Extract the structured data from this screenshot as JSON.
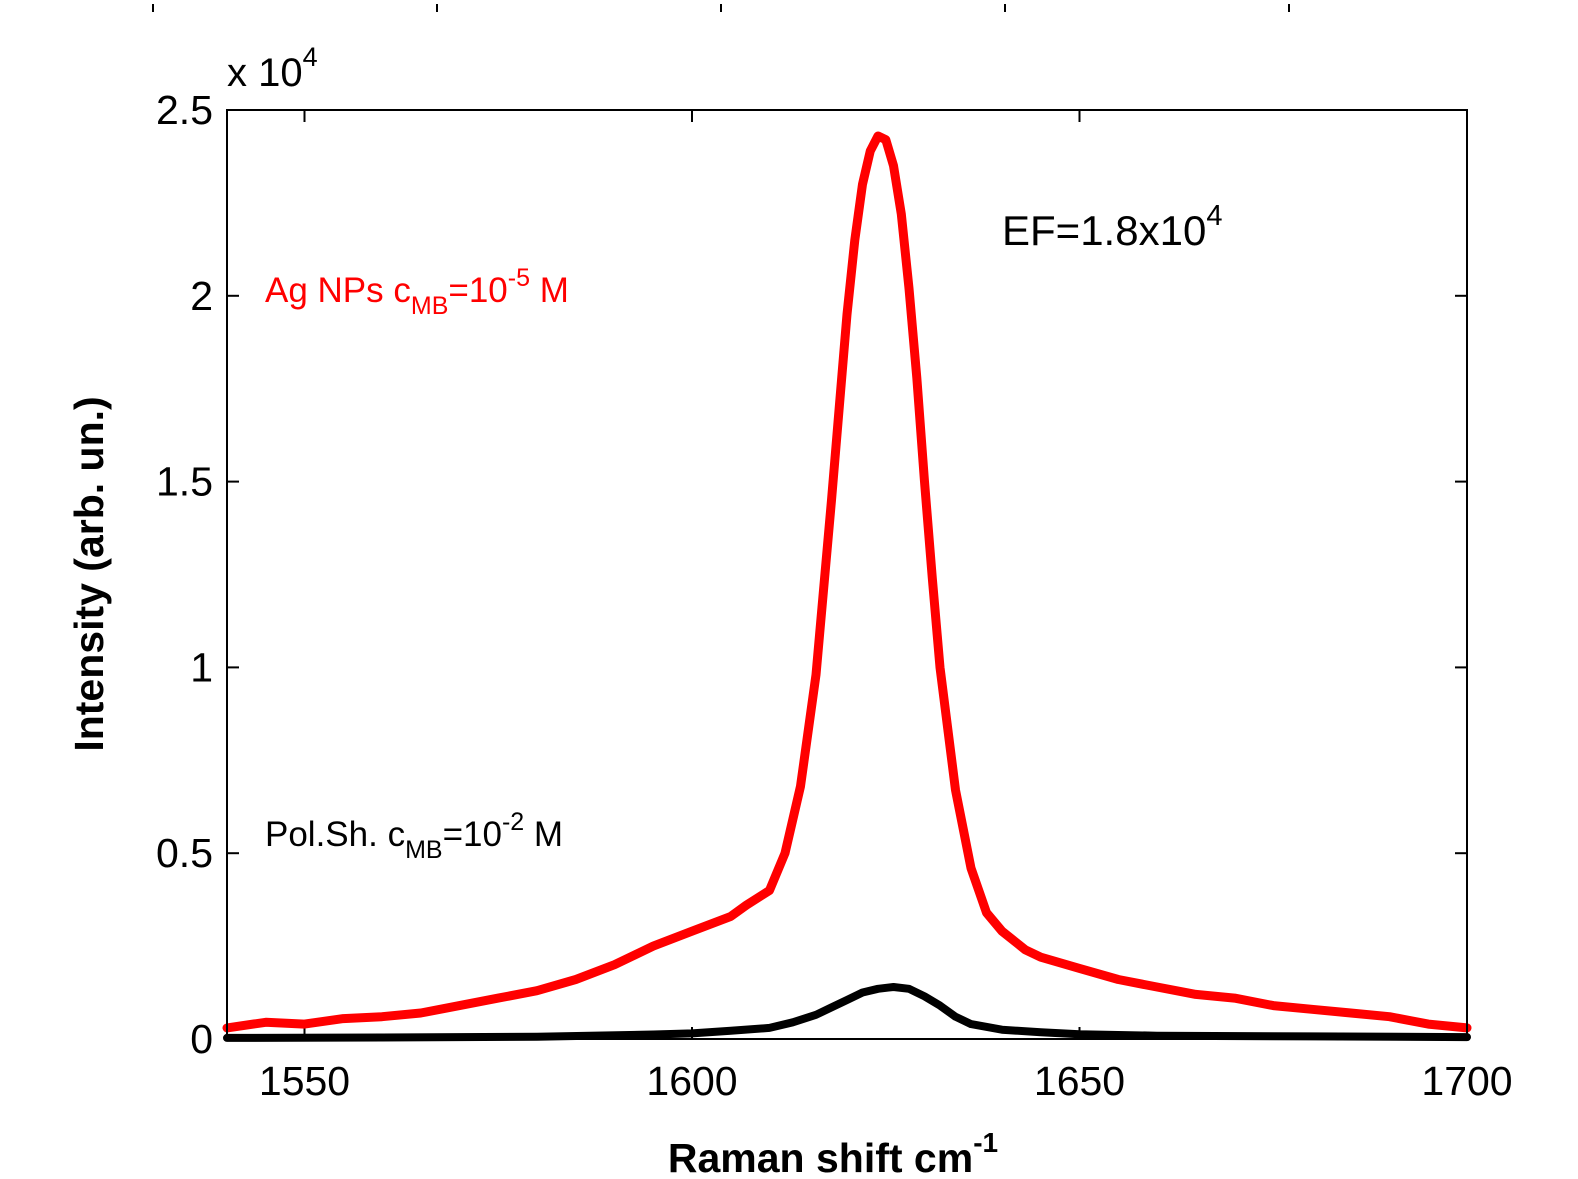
{
  "chart_data": {
    "type": "line",
    "xlabel": "Raman shift cm",
    "xlabel_sup": "-1",
    "ylabel": "Intensity (arb. un.)",
    "y_multiplier": {
      "base": "x 10",
      "exp": "4"
    },
    "xlim": [
      1540,
      1700
    ],
    "ylim": [
      0,
      2.5
    ],
    "x_ticks": [
      1550,
      1600,
      1650,
      1700
    ],
    "x_tick_labels": [
      "1550",
      "1600",
      "1650",
      "1700"
    ],
    "y_ticks": [
      0,
      0.5,
      1,
      1.5,
      2,
      2.5
    ],
    "y_tick_labels": [
      "0",
      "0.5",
      "1",
      "1.5",
      "2",
      "2.5"
    ],
    "grid": false,
    "colors": {
      "ag": "#ff0000",
      "polsh": "#000000"
    },
    "annotations": [
      {
        "id": "ef",
        "parts": [
          "EF=1.8x10",
          "4"
        ]
      },
      {
        "id": "ag",
        "parts": [
          "Ag NPs c",
          "MB",
          "=10",
          "-5",
          " M"
        ]
      },
      {
        "id": "polsh",
        "parts": [
          "Pol.Sh. c",
          "MB",
          "=10",
          "-2",
          " M"
        ]
      }
    ],
    "series": [
      {
        "key": "ag",
        "x": [
          1540,
          1545,
          1550,
          1555,
          1560,
          1565,
          1570,
          1575,
          1580,
          1585,
          1590,
          1595,
          1600,
          1605,
          1607,
          1610,
          1612,
          1614,
          1616,
          1618,
          1620,
          1621,
          1622,
          1623,
          1624,
          1625,
          1626,
          1627,
          1628,
          1629,
          1630,
          1631,
          1632,
          1634,
          1636,
          1638,
          1640,
          1643,
          1645,
          1650,
          1655,
          1660,
          1665,
          1670,
          1675,
          1680,
          1685,
          1690,
          1695,
          1700
        ],
        "y": [
          0.03,
          0.045,
          0.04,
          0.055,
          0.06,
          0.07,
          0.09,
          0.11,
          0.13,
          0.16,
          0.2,
          0.25,
          0.29,
          0.33,
          0.36,
          0.4,
          0.5,
          0.68,
          0.98,
          1.45,
          1.95,
          2.15,
          2.3,
          2.39,
          2.43,
          2.42,
          2.35,
          2.22,
          2.02,
          1.78,
          1.5,
          1.24,
          1.0,
          0.67,
          0.46,
          0.34,
          0.29,
          0.24,
          0.22,
          0.19,
          0.16,
          0.14,
          0.12,
          0.11,
          0.09,
          0.08,
          0.07,
          0.06,
          0.04,
          0.03
        ]
      },
      {
        "key": "polsh",
        "x": [
          1540,
          1560,
          1580,
          1595,
          1600,
          1605,
          1610,
          1613,
          1616,
          1618,
          1620,
          1622,
          1624,
          1626,
          1628,
          1630,
          1632,
          1634,
          1636,
          1640,
          1645,
          1650,
          1660,
          1680,
          1700
        ],
        "y": [
          0.003,
          0.004,
          0.006,
          0.012,
          0.015,
          0.022,
          0.03,
          0.045,
          0.065,
          0.085,
          0.105,
          0.125,
          0.135,
          0.14,
          0.135,
          0.115,
          0.09,
          0.06,
          0.04,
          0.025,
          0.018,
          0.013,
          0.009,
          0.007,
          0.005
        ]
      }
    ]
  }
}
